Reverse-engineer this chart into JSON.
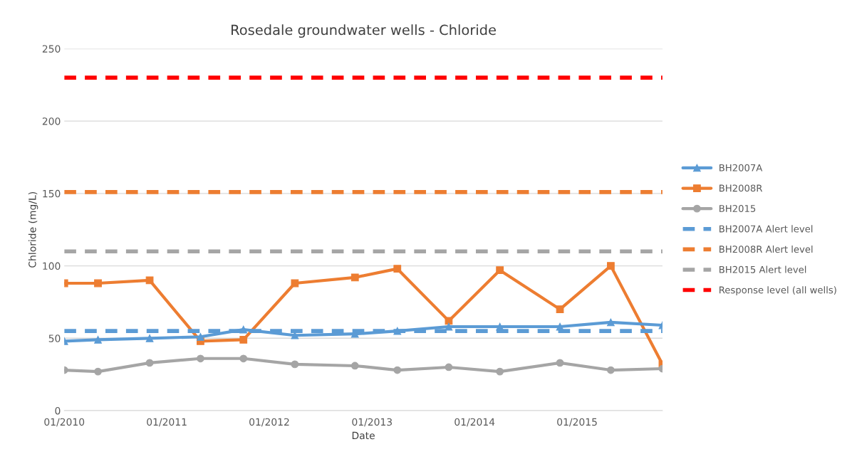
{
  "chart_data": {
    "type": "line",
    "title": "Rosedale groundwater wells - Chloride",
    "xlabel": "Date",
    "ylabel": "Chloride (mg/L)",
    "x": [
      "2010-01",
      "2010-05",
      "2010-11",
      "2011-05",
      "2011-10",
      "2012-04",
      "2012-11",
      "2013-04",
      "2013-10",
      "2014-04",
      "2014-11",
      "2015-05",
      "2015-11"
    ],
    "series": [
      {
        "name": "BH2007A",
        "color": "#5b9bd5",
        "marker": "triangle",
        "line_style": "solid",
        "values": [
          48,
          49,
          50,
          51,
          56,
          52,
          53,
          55,
          58,
          58,
          58,
          61,
          59
        ]
      },
      {
        "name": "BH2008R",
        "color": "#ed7d31",
        "marker": "square",
        "line_style": "solid",
        "values": [
          88,
          88,
          90,
          48,
          49,
          88,
          92,
          98,
          62,
          97,
          70,
          100,
          32
        ]
      },
      {
        "name": "BH2015",
        "color": "#a5a5a5",
        "marker": "circle",
        "line_style": "solid",
        "values": [
          28,
          27,
          33,
          36,
          36,
          32,
          31,
          28,
          30,
          27,
          33,
          28,
          29
        ]
      },
      {
        "name": "BH2007A Alert level",
        "color": "#5b9bd5",
        "marker": "none",
        "line_style": "dashed",
        "x": [
          "2010-01",
          "2015-11"
        ],
        "values": [
          55,
          55
        ]
      },
      {
        "name": "BH2008R Alert level",
        "color": "#ed7d31",
        "marker": "none",
        "line_style": "dashed",
        "x": [
          "2010-01",
          "2015-11"
        ],
        "values": [
          151,
          151
        ]
      },
      {
        "name": "BH2015 Alert level",
        "color": "#a5a5a5",
        "marker": "none",
        "line_style": "dashed",
        "x": [
          "2010-01",
          "2015-11"
        ],
        "values": [
          110,
          110
        ]
      },
      {
        "name": "Response level (all wells)",
        "color": "#ff0000",
        "marker": "none",
        "line_style": "dashed",
        "x": [
          "2010-01",
          "2015-11"
        ],
        "values": [
          230,
          230
        ]
      }
    ],
    "xlim": [
      "2010-01",
      "2015-11"
    ],
    "xticks": [
      {
        "value": "2010-01",
        "label": "01/2010"
      },
      {
        "value": "2011-01",
        "label": "01/2011"
      },
      {
        "value": "2012-01",
        "label": "01/2012"
      },
      {
        "value": "2013-01",
        "label": "01/2013"
      },
      {
        "value": "2014-01",
        "label": "01/2014"
      },
      {
        "value": "2015-01",
        "label": "01/2015"
      }
    ],
    "ylim": [
      0,
      250
    ],
    "yticks": [
      0,
      50,
      100,
      150,
      200,
      250
    ],
    "grid": "y",
    "legend": "right"
  }
}
